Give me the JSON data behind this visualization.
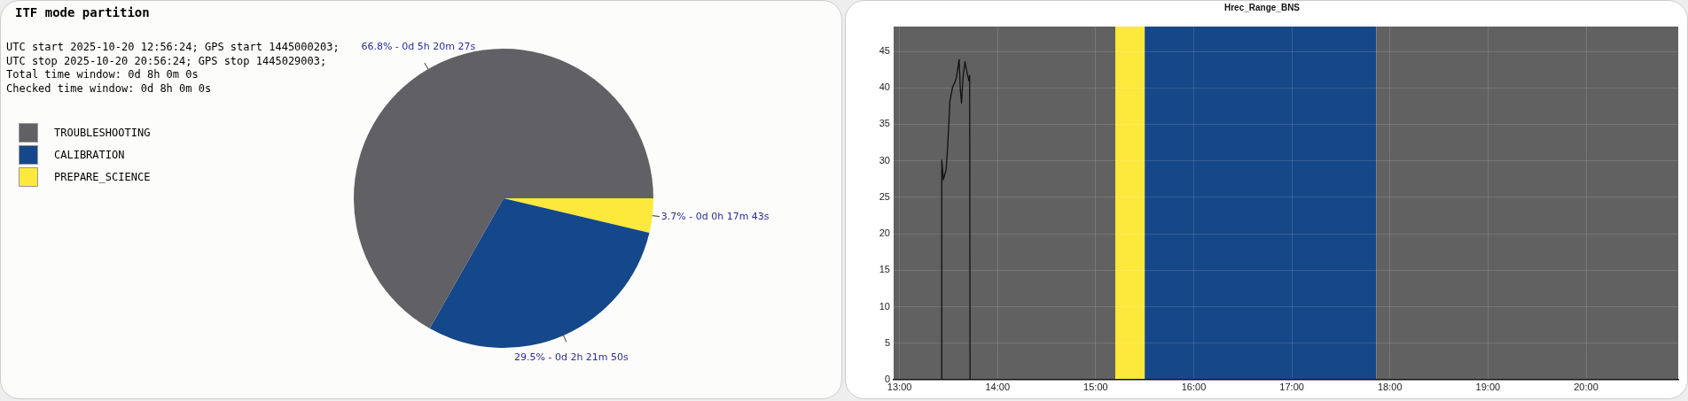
{
  "chart_data": [
    {
      "type": "pie",
      "title": "ITF mode partition",
      "annotations": [
        "UTC start 2025-10-20 12:56:24; GPS start 1445000203;",
        "UTC stop 2025-10-20 20:56:24; GPS stop 1445029003;",
        "Total time window: 0d 8h 0m 0s",
        "Checked time window: 0d 8h 0m 0s"
      ],
      "categories": [
        "TROUBLESHOOTING",
        "CALIBRATION",
        "PREPARE_SCIENCE"
      ],
      "values": [
        66.8,
        29.5,
        3.7
      ],
      "colors": [
        "#616064",
        "#15488a",
        "#fde93c"
      ],
      "value_labels": [
        "66.8% - 0d 5h 20m 27s",
        "29.5% - 0d 2h 21m 50s",
        "3.7% - 0d 0h 17m 43s"
      ],
      "legend": "left"
    },
    {
      "type": "line",
      "title": "Hrec_Range_BNS",
      "series": [
        {
          "color": "#111111",
          "x": [
            13.431,
            13.431,
            13.447,
            13.475,
            13.49,
            13.514,
            13.541,
            13.569,
            13.58,
            13.608,
            13.62,
            13.632,
            13.647,
            13.667,
            13.687,
            13.707,
            13.715,
            13.719
          ],
          "values": [
            0,
            30.1,
            27.4,
            28.8,
            31.8,
            38.2,
            40.1,
            40.9,
            41.4,
            43.9,
            39.8,
            37.9,
            41.4,
            43.6,
            42.2,
            41.0,
            41.7,
            0
          ]
        }
      ],
      "xlim": [
        12.94,
        20.94
      ],
      "ylim": [
        0,
        48.4
      ],
      "xticks": [
        {
          "value": 13,
          "label": "13:00"
        },
        {
          "value": 14,
          "label": "14:00"
        },
        {
          "value": 15,
          "label": "15:00"
        },
        {
          "value": 16,
          "label": "16:00"
        },
        {
          "value": 17,
          "label": "17:00"
        },
        {
          "value": 18,
          "label": "18:00"
        },
        {
          "value": 19,
          "label": "19:00"
        },
        {
          "value": 20,
          "label": "20:00"
        }
      ],
      "yticks": [
        0,
        5,
        10,
        15,
        20,
        25,
        30,
        35,
        40,
        45
      ],
      "bands": [
        {
          "axis": "x",
          "from": 12.94,
          "to": 15.2,
          "color": "#616161"
        },
        {
          "axis": "x",
          "from": 15.2,
          "to": 15.5,
          "color": "#fde83c"
        },
        {
          "axis": "x",
          "from": 15.5,
          "to": 17.86,
          "color": "#164789"
        },
        {
          "axis": "x",
          "from": 17.86,
          "to": 20.94,
          "color": "#616161"
        }
      ],
      "grid": true,
      "marker": "none",
      "line_style": "solid",
      "legend": false
    }
  ]
}
